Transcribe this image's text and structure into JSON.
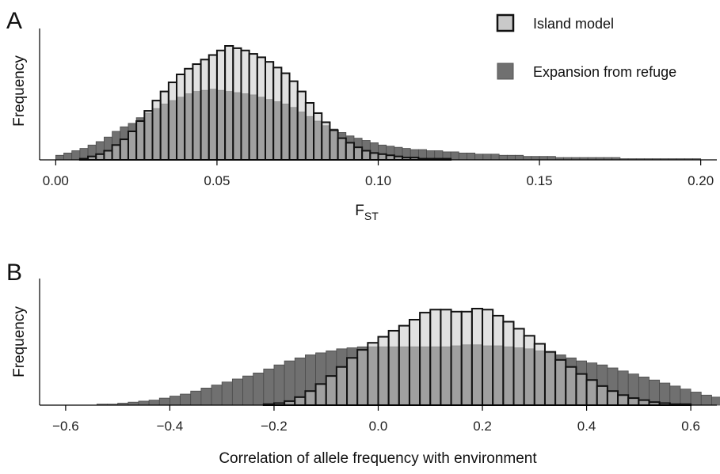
{
  "colors": {
    "island_fill": "#c9c9c9",
    "island_stroke": "#111111",
    "expansion_fill": "#707070",
    "expansion_stroke": "#4a4a4a"
  },
  "chart_data": [
    {
      "type": "bar",
      "panel": "A",
      "ylabel": "Frequency",
      "xlabel_main": "F",
      "xlabel_sub": "ST",
      "xlim": [
        -0.005,
        0.205
      ],
      "xticks": [
        0.0,
        0.05,
        0.1,
        0.15,
        0.2
      ],
      "xtick_labels": [
        "0.00",
        "0.05",
        "0.10",
        "0.15",
        "0.20"
      ],
      "bin_start": 0.0,
      "bin_width": 0.0025,
      "legend": {
        "position": "top-right",
        "entries": [
          "Island model",
          "Expansion from refuge"
        ]
      },
      "series": [
        {
          "name": "Island model",
          "values": [
            0,
            0,
            0,
            1,
            3,
            5,
            8,
            13,
            18,
            25,
            34,
            43,
            52,
            60,
            68,
            75,
            80,
            84,
            88,
            92,
            96,
            100,
            98,
            96,
            93,
            90,
            86,
            81,
            76,
            69,
            60,
            50,
            41,
            33,
            26,
            19,
            15,
            11,
            8,
            6,
            5,
            4,
            3,
            2,
            2,
            1,
            1,
            1,
            1,
            0,
            0,
            0,
            0,
            0,
            0,
            0,
            0,
            0,
            0,
            0,
            0,
            0,
            0,
            0,
            0,
            0,
            0,
            0,
            0,
            0,
            0,
            0,
            0,
            0,
            0,
            0,
            0,
            0,
            0,
            0
          ]
        },
        {
          "name": "Expansion from refuge",
          "values": [
            4,
            6,
            8,
            10,
            13,
            16,
            20,
            25,
            29,
            32,
            37,
            41,
            45,
            49,
            52,
            55,
            58,
            60,
            61,
            62,
            61,
            60,
            59,
            58,
            57,
            55,
            53,
            51,
            49,
            46,
            42,
            38,
            34,
            30,
            27,
            24,
            21,
            19,
            17,
            15,
            13,
            12,
            11,
            10,
            9,
            9,
            8,
            8,
            7,
            7,
            6,
            6,
            5,
            5,
            5,
            4,
            4,
            4,
            3,
            3,
            3,
            3,
            2,
            2,
            2,
            2,
            2,
            2,
            2,
            2,
            1,
            1,
            1,
            1,
            1,
            1,
            1,
            1,
            1,
            1
          ]
        }
      ]
    },
    {
      "type": "bar",
      "panel": "B",
      "ylabel": "Frequency",
      "xlabel": "Correlation of allele frequency with environment",
      "xlim": [
        -0.65,
        0.65
      ],
      "xticks": [
        -0.6,
        -0.4,
        -0.2,
        0.0,
        0.2,
        0.4,
        0.6
      ],
      "xtick_labels": [
        "−0.6",
        "−0.4",
        "−0.2",
        "0.0",
        "0.2",
        "0.4",
        "0.6"
      ],
      "bin_start": -0.6,
      "bin_width": 0.02,
      "series": [
        {
          "name": "Island model",
          "values": [
            0,
            0,
            0,
            0,
            0,
            0,
            0,
            0,
            0,
            0,
            0,
            0,
            0,
            0,
            0,
            0,
            0,
            0,
            0,
            1,
            2,
            4,
            8,
            14,
            21,
            29,
            38,
            47,
            55,
            62,
            68,
            74,
            79,
            85,
            92,
            95,
            95,
            93,
            93,
            96,
            95,
            89,
            83,
            76,
            69,
            61,
            53,
            45,
            38,
            31,
            25,
            19,
            14,
            10,
            7,
            5,
            3,
            2,
            1,
            1,
            0,
            0,
            0,
            0,
            0,
            0,
            0,
            0,
            0,
            0
          ]
        },
        {
          "name": "Expansion from refuge",
          "values": [
            0,
            0,
            0,
            1,
            1,
            2,
            3,
            4,
            5,
            7,
            9,
            11,
            14,
            17,
            20,
            23,
            26,
            29,
            32,
            36,
            40,
            44,
            47,
            50,
            52,
            54,
            56,
            57,
            58,
            58,
            58,
            58,
            58,
            58,
            58,
            58,
            58,
            59,
            60,
            60,
            59,
            59,
            58,
            57,
            56,
            54,
            52,
            50,
            47,
            44,
            42,
            40,
            37,
            34,
            31,
            28,
            25,
            22,
            19,
            16,
            13,
            10,
            8,
            6,
            4,
            3,
            2,
            1,
            1,
            0
          ]
        }
      ]
    }
  ]
}
